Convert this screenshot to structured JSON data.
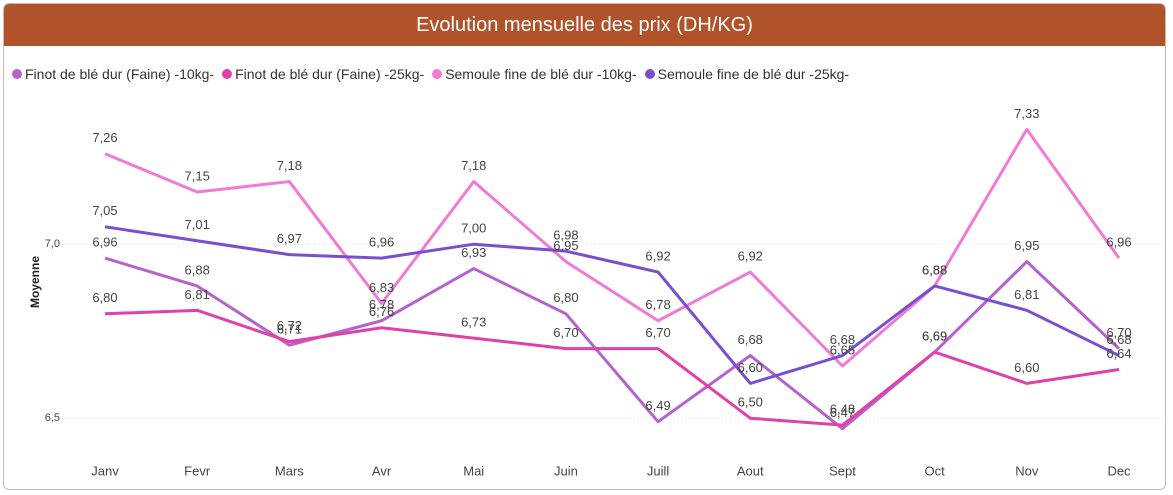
{
  "chart_data": {
    "type": "line",
    "title": "Evolution mensuelle des prix (DH/KG)",
    "y_label": "Moyenne",
    "categories": [
      "Janv",
      "Fevr",
      "Mars",
      "Avr",
      "Mai",
      "Juin",
      "Juill",
      "Aout",
      "Sept",
      "Oct",
      "Nov",
      "Dec"
    ],
    "ylim": [
      6.4,
      7.4
    ],
    "yticks": [
      {
        "value": 6.5,
        "label": "6,5"
      },
      {
        "value": 7.0,
        "label": "7,0"
      }
    ],
    "grid": true,
    "series": [
      {
        "name": "Finot de blé dur (Faine) -10kg-",
        "color": "#b563cc",
        "values": [
          6.96,
          6.88,
          6.71,
          6.78,
          6.93,
          6.8,
          6.49,
          6.68,
          6.47,
          6.69,
          6.95,
          6.7
        ],
        "value_labels": [
          "6,96",
          "6,88",
          "6,71",
          "6,78",
          "6,93",
          "6,80",
          "6,49",
          "6,68",
          "6,47",
          "6,69",
          "6,95",
          "6,70"
        ]
      },
      {
        "name": "Finot de blé dur (Faine) -25kg-",
        "color": "#e041a8",
        "values": [
          6.8,
          6.81,
          6.72,
          6.76,
          6.73,
          6.7,
          6.7,
          6.5,
          6.48,
          6.69,
          6.6,
          6.64
        ],
        "value_labels": [
          "6,80",
          "6,81",
          "6,72",
          "6,76",
          "6,73",
          "6,70",
          "6,70",
          "6,50",
          "6,48",
          "6,69",
          "6,60",
          "6,64"
        ]
      },
      {
        "name": "Semoule fine de blé dur -10kg-",
        "color": "#f07ad6",
        "values": [
          7.26,
          7.15,
          7.18,
          6.83,
          7.18,
          6.95,
          6.78,
          6.92,
          6.65,
          6.88,
          7.33,
          6.96
        ],
        "value_labels": [
          "7,26",
          "7,15",
          "7,18",
          "6,83",
          "7,18",
          "6,95",
          "6,78",
          "6,92",
          "6,65",
          "6,88",
          "7,33",
          "6,96"
        ]
      },
      {
        "name": "Semoule fine de blé dur -25kg-",
        "color": "#7a4fcf",
        "values": [
          7.05,
          7.01,
          6.97,
          6.96,
          7.0,
          6.98,
          6.92,
          6.6,
          6.68,
          6.88,
          6.81,
          6.68
        ],
        "value_labels": [
          "7,05",
          "7,01",
          "6,97",
          "6,96",
          "7,00",
          "6,98",
          "6,92",
          "6,60",
          "6,68",
          "6,88",
          "6,81",
          "6,68"
        ]
      }
    ]
  }
}
